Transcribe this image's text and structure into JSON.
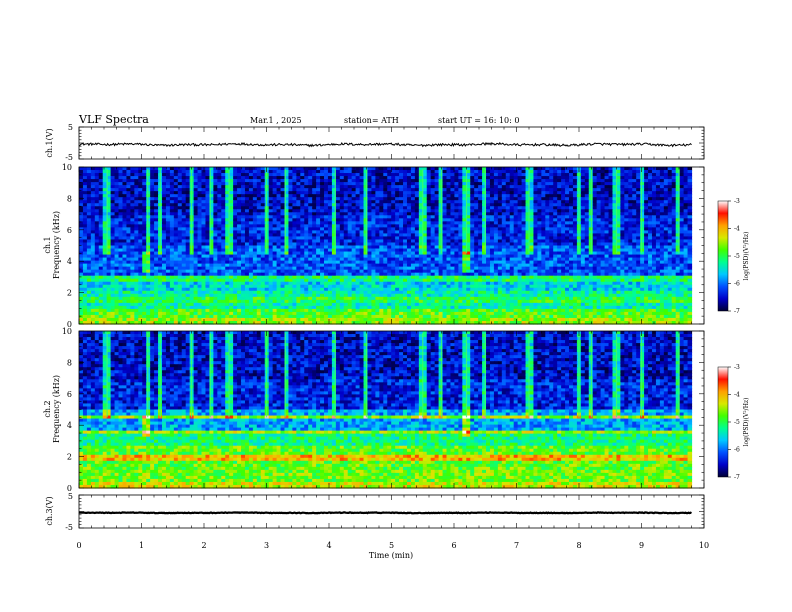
{
  "header": {
    "title": "VLF  Spectra",
    "date": "Mar.1   , 2025",
    "station": "station= ATH",
    "start_ut": "start  UT  =   16: 10: 0"
  },
  "colors": {
    "background": "#ffffff",
    "trace": "#000000",
    "colormap": [
      "#000033",
      "#0000c8",
      "#0050ff",
      "#00c8ff",
      "#00ff90",
      "#40ff00",
      "#d8e800",
      "#ffa000",
      "#ff1000",
      "#ffffff"
    ]
  },
  "chart_data": [
    {
      "type": "line",
      "name": "ch1-voltage",
      "ylabel": "ch.1(V)",
      "xlim": [
        0,
        10
      ],
      "ylim": [
        -5,
        5
      ],
      "yticks": [
        "5",
        "-5"
      ],
      "approx_mean_V": -0.5,
      "approx_noise_amplitude_V": 0.6,
      "x_end_min": 9.8
    },
    {
      "type": "heatmap",
      "name": "ch1-spectrogram",
      "ylabel": "Frequency (kHz)",
      "channel_label": "ch.1",
      "xlim": [
        0,
        10
      ],
      "ylim": [
        0,
        10
      ],
      "yticks": [
        "0",
        "2",
        "4",
        "6",
        "8",
        "10"
      ],
      "colorbar": {
        "label": "log(PSD)(V²/Hz)",
        "range": [
          -7,
          -3
        ],
        "ticks": [
          "-3",
          "-4",
          "-5",
          "-6",
          "-7"
        ]
      },
      "notes": "Strong horizontal bands near 0.2 kHz and 1.5 kHz; broadband impulsive (sferic) spikes from ~5 to 10 kHz; bursts near t=1.1 min and t=6.2 min at ~4 kHz",
      "spike_times_min": [
        0.45,
        1.1,
        1.3,
        1.8,
        2.1,
        2.4,
        3.0,
        3.3,
        4.1,
        4.6,
        5.5,
        5.8,
        6.2,
        6.5,
        7.2,
        8.0,
        8.2,
        8.6,
        9.0,
        9.6
      ]
    },
    {
      "type": "heatmap",
      "name": "ch2-spectrogram",
      "ylabel": "Frequency (kHz)",
      "channel_label": "ch.2",
      "xlim": [
        0,
        10
      ],
      "ylim": [
        0,
        10
      ],
      "yticks": [
        "0",
        "2",
        "4",
        "6",
        "8",
        "10"
      ],
      "colorbar": {
        "label": "log(PSD)(V²/Hz)",
        "range": [
          -7,
          -3
        ],
        "ticks": [
          "-3",
          "-4",
          "-5",
          "-6",
          "-7"
        ]
      },
      "notes": "Stronger lower band (0-3.5 kHz) with red emission lines near 2 kHz and 4.5 kHz; sferic spikes extend to 10 kHz",
      "spike_times_min": [
        0.45,
        1.1,
        1.3,
        1.8,
        2.1,
        2.4,
        3.0,
        3.3,
        4.1,
        4.6,
        5.5,
        5.8,
        6.2,
        6.5,
        7.2,
        8.0,
        8.2,
        8.6,
        9.0,
        9.6
      ]
    },
    {
      "type": "line",
      "name": "ch3-voltage",
      "ylabel": "ch.3(V)",
      "xlabel": "Time  (min)",
      "xlim": [
        0,
        10
      ],
      "ylim": [
        -5,
        5
      ],
      "yticks": [
        "5",
        "-5"
      ],
      "xticks": [
        "0",
        "1",
        "2",
        "3",
        "4",
        "5",
        "6",
        "7",
        "8",
        "9",
        "10"
      ],
      "approx_mean_V": -0.4,
      "approx_noise_amplitude_V": 0.15,
      "x_end_min": 9.8
    }
  ]
}
